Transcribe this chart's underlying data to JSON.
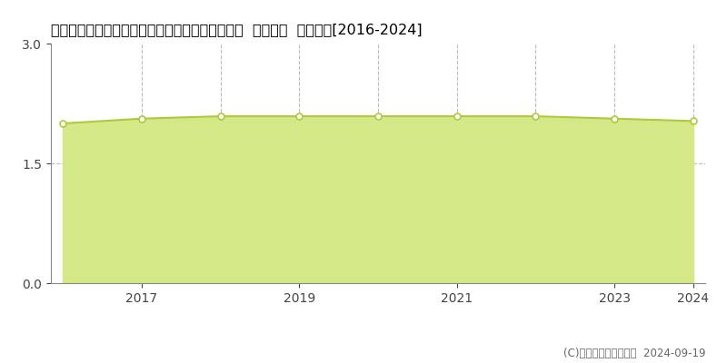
{
  "title": "福島県双葉郡楢葉町大字北田字上ノ原２２番３９  基準地価  地価推移[2016-2024]",
  "years": [
    2016,
    2017,
    2018,
    2019,
    2020,
    2021,
    2022,
    2023,
    2024
  ],
  "values": [
    2.0,
    2.06,
    2.09,
    2.09,
    2.09,
    2.09,
    2.09,
    2.06,
    2.03
  ],
  "ylim": [
    0,
    3.0
  ],
  "yticks": [
    0,
    1.5,
    3
  ],
  "xtick_labels": [
    "2017",
    "2019",
    "2021",
    "2023",
    "2024"
  ],
  "xtick_positions": [
    2017,
    2019,
    2021,
    2023,
    2024
  ],
  "vgrid_years": [
    2017,
    2018,
    2019,
    2020,
    2021,
    2022,
    2023,
    2024
  ],
  "line_color": "#aacb3c",
  "fill_color": "#d5e888",
  "marker_face": "#ffffff",
  "marker_edge": "#aacb3c",
  "grid_color": "#bbbbbb",
  "bg_color": "#ffffff",
  "legend_marker_color": "#c8d84a",
  "copyright_text": "(C)土地価格ドットコム  2024-09-19",
  "title_fontsize": 11.5,
  "axis_fontsize": 10,
  "legend_fontsize": 9.5,
  "copyright_fontsize": 8.5
}
